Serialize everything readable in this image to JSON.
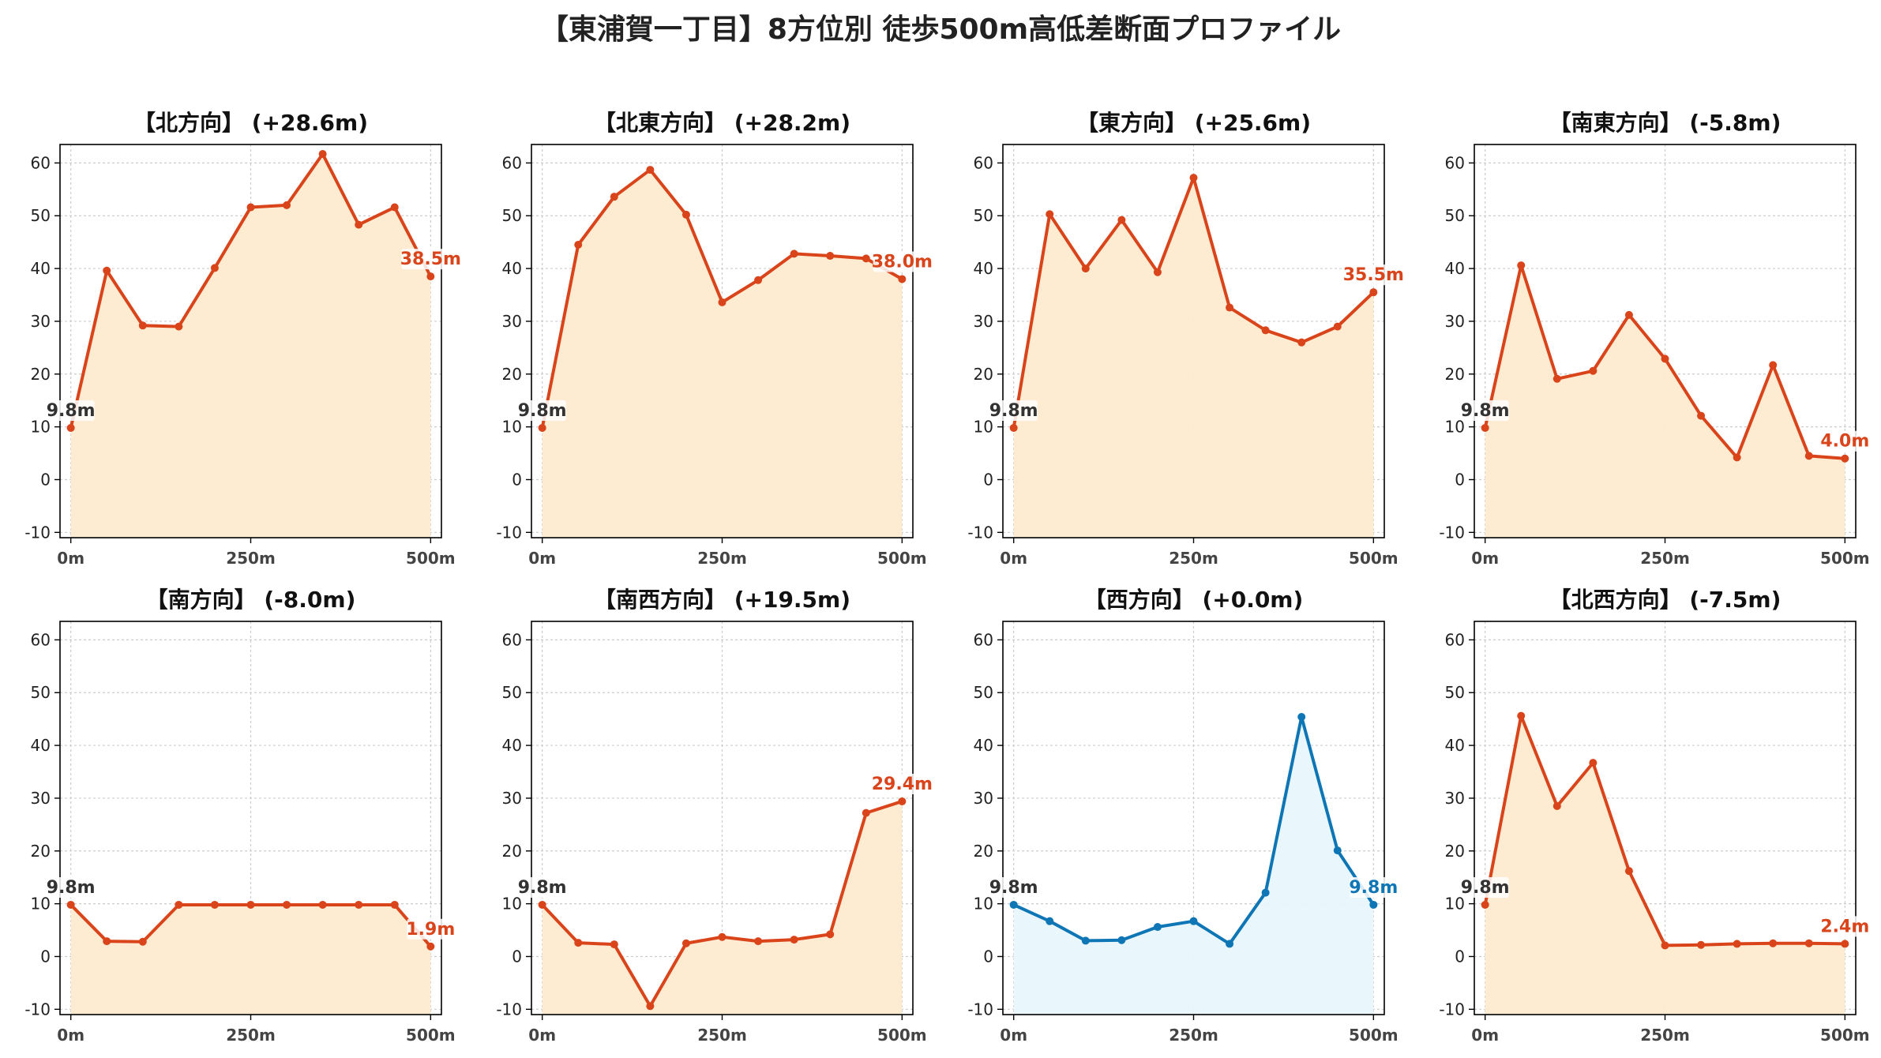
{
  "suptitle": "【東浦賀一丁目】8方位別 徒歩500m高低差断面プロファイル",
  "colors": {
    "rise_line": "#d9441a",
    "rise_fill": "#fdebd0",
    "flat_line": "#0f76b6",
    "flat_fill": "#e8f5fc",
    "start_label": "#333333",
    "grid": "#cccccc"
  },
  "chart_data": [
    {
      "type": "area",
      "title": "【北方向】 (+28.6m)",
      "x": [
        0,
        50,
        100,
        150,
        200,
        250,
        300,
        350,
        400,
        450,
        500
      ],
      "values": [
        9.8,
        39.6,
        29.2,
        29.0,
        40.1,
        51.6,
        52.0,
        61.7,
        48.3,
        51.6,
        38.5
      ],
      "start_label": "9.8m",
      "end_label": "38.5m",
      "style": "rise",
      "xticks": [
        "0m",
        "250m",
        "500m"
      ],
      "yticks": [
        -10,
        0,
        10,
        20,
        30,
        40,
        50,
        60
      ],
      "xlim": [
        -15,
        515
      ],
      "ylim": [
        -11,
        63.5
      ],
      "grid": true
    },
    {
      "type": "area",
      "title": "【北東方向】 (+28.2m)",
      "x": [
        0,
        50,
        100,
        150,
        200,
        250,
        300,
        350,
        400,
        450,
        500
      ],
      "values": [
        9.8,
        44.5,
        53.6,
        58.7,
        50.2,
        33.6,
        37.8,
        42.8,
        42.4,
        41.9,
        38.0
      ],
      "start_label": "9.8m",
      "end_label": "38.0m",
      "style": "rise",
      "xticks": [
        "0m",
        "250m",
        "500m"
      ],
      "yticks": [
        -10,
        0,
        10,
        20,
        30,
        40,
        50,
        60
      ],
      "xlim": [
        -15,
        515
      ],
      "ylim": [
        -11,
        63.5
      ],
      "grid": true
    },
    {
      "type": "area",
      "title": "【東方向】 (+25.6m)",
      "x": [
        0,
        50,
        100,
        150,
        200,
        250,
        300,
        350,
        400,
        450,
        500
      ],
      "values": [
        9.8,
        50.3,
        40.0,
        49.2,
        39.3,
        57.2,
        32.6,
        28.3,
        26.0,
        29.0,
        35.5
      ],
      "start_label": "9.8m",
      "end_label": "35.5m",
      "style": "rise",
      "xticks": [
        "0m",
        "250m",
        "500m"
      ],
      "yticks": [
        -10,
        0,
        10,
        20,
        30,
        40,
        50,
        60
      ],
      "xlim": [
        -15,
        515
      ],
      "ylim": [
        -11,
        63.5
      ],
      "grid": true
    },
    {
      "type": "area",
      "title": "【南東方向】 (-5.8m)",
      "x": [
        0,
        50,
        100,
        150,
        200,
        250,
        300,
        350,
        400,
        450,
        500
      ],
      "values": [
        9.8,
        40.6,
        19.1,
        20.6,
        31.2,
        22.9,
        12.1,
        4.2,
        21.7,
        4.5,
        4.0
      ],
      "start_label": "9.8m",
      "end_label": "4.0m",
      "style": "rise",
      "xticks": [
        "0m",
        "250m",
        "500m"
      ],
      "yticks": [
        -10,
        0,
        10,
        20,
        30,
        40,
        50,
        60
      ],
      "xlim": [
        -15,
        515
      ],
      "ylim": [
        -11,
        63.5
      ],
      "grid": true
    },
    {
      "type": "area",
      "title": "【南方向】 (-8.0m)",
      "x": [
        0,
        50,
        100,
        150,
        200,
        250,
        300,
        350,
        400,
        450,
        500
      ],
      "values": [
        9.8,
        2.9,
        2.8,
        9.8,
        9.8,
        9.8,
        9.8,
        9.8,
        9.8,
        9.8,
        1.9
      ],
      "start_label": "9.8m",
      "end_label": "1.9m",
      "style": "rise",
      "xticks": [
        "0m",
        "250m",
        "500m"
      ],
      "yticks": [
        -10,
        0,
        10,
        20,
        30,
        40,
        50,
        60
      ],
      "xlim": [
        -15,
        515
      ],
      "ylim": [
        -11,
        63.5
      ],
      "grid": true
    },
    {
      "type": "area",
      "title": "【南西方向】 (+19.5m)",
      "x": [
        0,
        50,
        100,
        150,
        200,
        250,
        300,
        350,
        400,
        450,
        500
      ],
      "values": [
        9.8,
        2.6,
        2.3,
        -9.4,
        2.5,
        3.7,
        2.9,
        3.2,
        4.2,
        27.2,
        29.4
      ],
      "start_label": "9.8m",
      "end_label": "29.4m",
      "style": "rise",
      "xticks": [
        "0m",
        "250m",
        "500m"
      ],
      "yticks": [
        -10,
        0,
        10,
        20,
        30,
        40,
        50,
        60
      ],
      "xlim": [
        -15,
        515
      ],
      "ylim": [
        -11,
        63.5
      ],
      "grid": true
    },
    {
      "type": "area",
      "title": "【西方向】 (+0.0m)",
      "x": [
        0,
        50,
        100,
        150,
        200,
        250,
        300,
        350,
        400,
        450,
        500
      ],
      "values": [
        9.8,
        6.7,
        3.0,
        3.1,
        5.6,
        6.7,
        2.4,
        12.1,
        45.4,
        20.1,
        9.8
      ],
      "start_label": "9.8m",
      "end_label": "9.8m",
      "style": "flat",
      "xticks": [
        "0m",
        "250m",
        "500m"
      ],
      "yticks": [
        -10,
        0,
        10,
        20,
        30,
        40,
        50,
        60
      ],
      "xlim": [
        -15,
        515
      ],
      "ylim": [
        -11,
        63.5
      ],
      "grid": true
    },
    {
      "type": "area",
      "title": "【北西方向】 (-7.5m)",
      "x": [
        0,
        50,
        100,
        150,
        200,
        250,
        300,
        350,
        400,
        450,
        500
      ],
      "values": [
        9.8,
        45.6,
        28.5,
        36.7,
        16.2,
        2.1,
        2.2,
        2.4,
        2.5,
        2.5,
        2.4
      ],
      "start_label": "9.8m",
      "end_label": "2.4m",
      "style": "rise",
      "xticks": [
        "0m",
        "250m",
        "500m"
      ],
      "yticks": [
        -10,
        0,
        10,
        20,
        30,
        40,
        50,
        60
      ],
      "xlim": [
        -15,
        515
      ],
      "ylim": [
        -11,
        63.5
      ],
      "grid": true
    }
  ]
}
